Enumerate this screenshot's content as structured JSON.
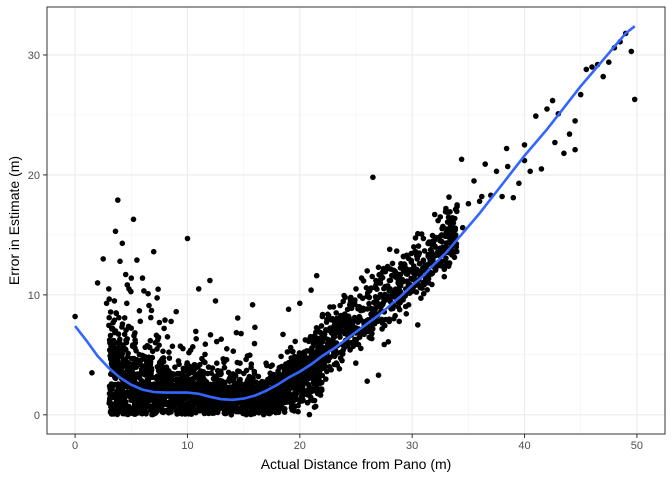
{
  "chart_data": {
    "type": "scatter",
    "title": "",
    "xlabel": "Actual Distance from Pano (m)",
    "ylabel": "Error in Estimate (m)",
    "xlim": [
      -2.5,
      52.5
    ],
    "ylim": [
      -1.6,
      34.0
    ],
    "x_ticks": [
      0,
      10,
      20,
      30,
      40,
      50
    ],
    "y_ticks": [
      0,
      10,
      20,
      30
    ],
    "x_tick_labels": [
      "0",
      "10",
      "20",
      "30",
      "40",
      "50"
    ],
    "y_tick_labels": [
      "0",
      "10",
      "20",
      "30"
    ],
    "grid": true,
    "legend": "none",
    "point_color": "#000000",
    "smooth_color": "#3366ff",
    "smooth_line": {
      "x": [
        0,
        1,
        2,
        3,
        4,
        5,
        6,
        7,
        8,
        9,
        10,
        11,
        12,
        13,
        14,
        15,
        16,
        17,
        18,
        19,
        20,
        21,
        22,
        23,
        24,
        25,
        26,
        27,
        28,
        29,
        30,
        31,
        32,
        33,
        34,
        35,
        36,
        37,
        38,
        39,
        40,
        41,
        42,
        43,
        44,
        45,
        46,
        47,
        48,
        49,
        49.8
      ],
      "y": [
        7.4,
        6.2,
        4.9,
        3.9,
        3.1,
        2.5,
        2.1,
        1.9,
        1.85,
        1.85,
        1.85,
        1.75,
        1.5,
        1.3,
        1.25,
        1.35,
        1.6,
        2.0,
        2.5,
        3.1,
        3.6,
        4.2,
        4.9,
        5.5,
        6.2,
        6.9,
        7.6,
        8.3,
        9.1,
        9.9,
        10.8,
        11.6,
        12.6,
        13.5,
        14.6,
        15.7,
        16.8,
        18.0,
        19.2,
        20.4,
        21.6,
        22.7,
        23.8,
        25.0,
        26.2,
        27.4,
        28.5,
        29.6,
        30.7,
        31.8,
        32.4
      ],
      "method": "loess"
    },
    "points": {
      "x": [
        0.0,
        1.5,
        2.0,
        2.5,
        3.0,
        3.5,
        3.6,
        3.8,
        4.0,
        4.2,
        4.5,
        5.0,
        5.2,
        5.5,
        6.0,
        6.5,
        7.0,
        2.8,
        3.2,
        4.8,
        3.3,
        3.9,
        4.6,
        5.8,
        6.8,
        7.5,
        8.0,
        9.0,
        10.0,
        11.0,
        12.0,
        12.5,
        13.0,
        13.5,
        16.0,
        17.0,
        18.5,
        19.0,
        20.0,
        21.0,
        21.5,
        22.0,
        23.0,
        24.0,
        24.5,
        25.0,
        25.5,
        26.0,
        26.5,
        27.0,
        27.5,
        28.0,
        28.5,
        29.0,
        29.5,
        30.0,
        30.5,
        31.0,
        31.5,
        32.0,
        32.5,
        33.0,
        33.5,
        34.0,
        34.5,
        35.0,
        35.5,
        36.0,
        36.5,
        37.0,
        37.5,
        38.0,
        38.5,
        39.0,
        39.5,
        40.0,
        40.5,
        41.0,
        41.5,
        42.0,
        42.5,
        43.0,
        43.5,
        44.0,
        44.5,
        45.0,
        45.5,
        46.0,
        46.5,
        47.0,
        47.5,
        48.0,
        48.5,
        49.0,
        49.5,
        49.8,
        34.4,
        36.2,
        38.4,
        40.0,
        42.7,
        44.5,
        26.0,
        27.0,
        30.5
      ],
      "y": [
        8.2,
        3.5,
        11.0,
        13.0,
        10.5,
        9.5,
        15.3,
        17.9,
        12.8,
        14.3,
        11.7,
        11.4,
        16.3,
        12.9,
        11.4,
        10.1,
        13.6,
        9.3,
        5.7,
        10.5,
        7.2,
        8.1,
        9.3,
        7.8,
        8.7,
        7.7,
        7.9,
        8.6,
        14.7,
        10.5,
        11.2,
        9.5,
        6.3,
        5.5,
        7.3,
        4.3,
        6.7,
        8.8,
        9.3,
        10.4,
        11.6,
        8.2,
        9.0,
        8.4,
        9.6,
        10.5,
        11.4,
        12.0,
        19.8,
        12.3,
        9.8,
        13.8,
        11.5,
        12.6,
        13.3,
        10.3,
        15.1,
        14.7,
        14.4,
        16.7,
        16.5,
        17.2,
        14.8,
        17.5,
        15.6,
        17.6,
        19.5,
        17.8,
        20.9,
        18.3,
        20.3,
        18.2,
        20.7,
        18.1,
        19.3,
        22.5,
        20.3,
        24.9,
        20.5,
        25.5,
        26.2,
        25.1,
        21.8,
        23.4,
        24.5,
        26.7,
        28.8,
        29.0,
        29.2,
        28.2,
        29.4,
        30.6,
        31.1,
        31.8,
        30.3,
        26.3,
        21.3,
        18.2,
        22.2,
        21.2,
        22.7,
        22.1,
        2.8,
        3.3,
        7.5
      ]
    },
    "dense_region": {
      "description_regions": [
        {
          "x_range": [
            3,
            16
          ],
          "y_center": 1.8,
          "y_spread": [
            0,
            7.5
          ],
          "count": 1600
        },
        {
          "x_range": [
            16,
            22
          ],
          "y_center": 2.9,
          "y_spread": [
            0,
            6.2
          ],
          "count": 700
        },
        {
          "x_range": [
            22,
            34
          ],
          "y_center": 7.5,
          "y_spread": [
            2.5,
            13
          ],
          "count": 550
        }
      ]
    }
  }
}
